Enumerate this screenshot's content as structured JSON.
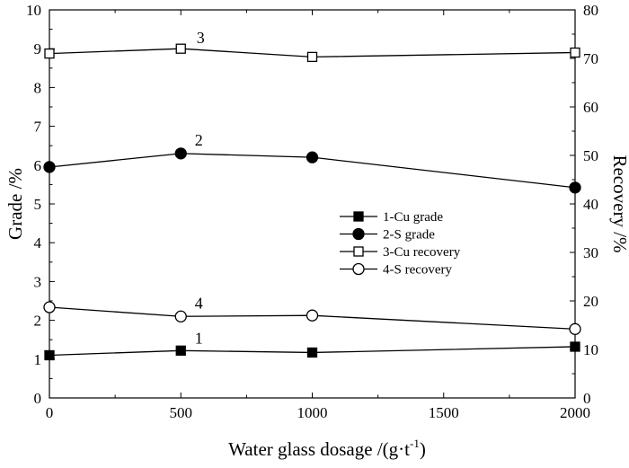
{
  "chart_data": {
    "type": "line",
    "xlabel": "Water glass dosage /(g·t",
    "xlabel_sup": "-1",
    "xlabel_close": ")",
    "ylabel_left": "Grade /%",
    "ylabel_right": "Recovery /%",
    "xlim": [
      0,
      2000
    ],
    "ylim_left": [
      0,
      10
    ],
    "ylim_right": [
      0,
      80
    ],
    "x_ticks": [
      "0",
      "500",
      "1000",
      "1500",
      "2000"
    ],
    "y_left_ticks": [
      "0",
      "1",
      "2",
      "3",
      "4",
      "5",
      "6",
      "7",
      "8",
      "9",
      "10"
    ],
    "y_right_ticks": [
      "0",
      "10",
      "20",
      "30",
      "40",
      "50",
      "60",
      "70",
      "80"
    ],
    "x": [
      0,
      500,
      1000,
      2000
    ],
    "series": [
      {
        "id": "cu-grade",
        "name": "1-Cu grade",
        "label": "1",
        "axis": "left",
        "marker": "filled-square",
        "values": [
          1.1,
          1.22,
          1.17,
          1.32
        ]
      },
      {
        "id": "s-grade",
        "name": "2-S grade",
        "label": "2",
        "axis": "left",
        "marker": "filled-circle",
        "values": [
          5.95,
          6.3,
          6.2,
          5.42
        ]
      },
      {
        "id": "cu-recovery",
        "name": "3-Cu recovery",
        "label": "3",
        "axis": "right",
        "marker": "open-square",
        "values": [
          71,
          72,
          70.3,
          71.2
        ]
      },
      {
        "id": "s-recovery",
        "name": "4-S recovery",
        "label": "4",
        "axis": "right",
        "marker": "open-circle",
        "values": [
          18.7,
          16.8,
          17,
          14.2
        ]
      }
    ],
    "legend_position": "center-right",
    "grid": false
  }
}
